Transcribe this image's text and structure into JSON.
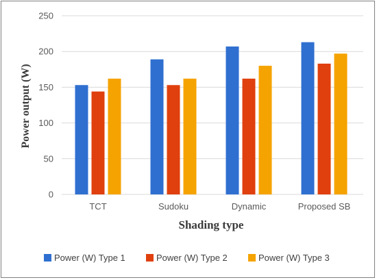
{
  "chart_data": {
    "type": "bar",
    "categories": [
      "TCT",
      "Sudoku",
      "Dynamic",
      "Proposed SB"
    ],
    "series": [
      {
        "name": "Power (W) Type 1",
        "values": [
          153,
          189,
          207,
          213
        ],
        "color": "#2f6fd0"
      },
      {
        "name": "Power (W) Type 2",
        "values": [
          144,
          153,
          162,
          183
        ],
        "color": "#e0400e"
      },
      {
        "name": "Power (W) Type 3",
        "values": [
          162,
          162,
          180,
          197
        ],
        "color": "#f5a300"
      }
    ],
    "xlabel": "Shading type",
    "ylabel": "Power output (W)",
    "ylim": [
      0,
      250
    ],
    "yticks": [
      "0",
      "50",
      "100",
      "150",
      "200",
      "250"
    ],
    "grid": true,
    "legend_position": "bottom"
  }
}
